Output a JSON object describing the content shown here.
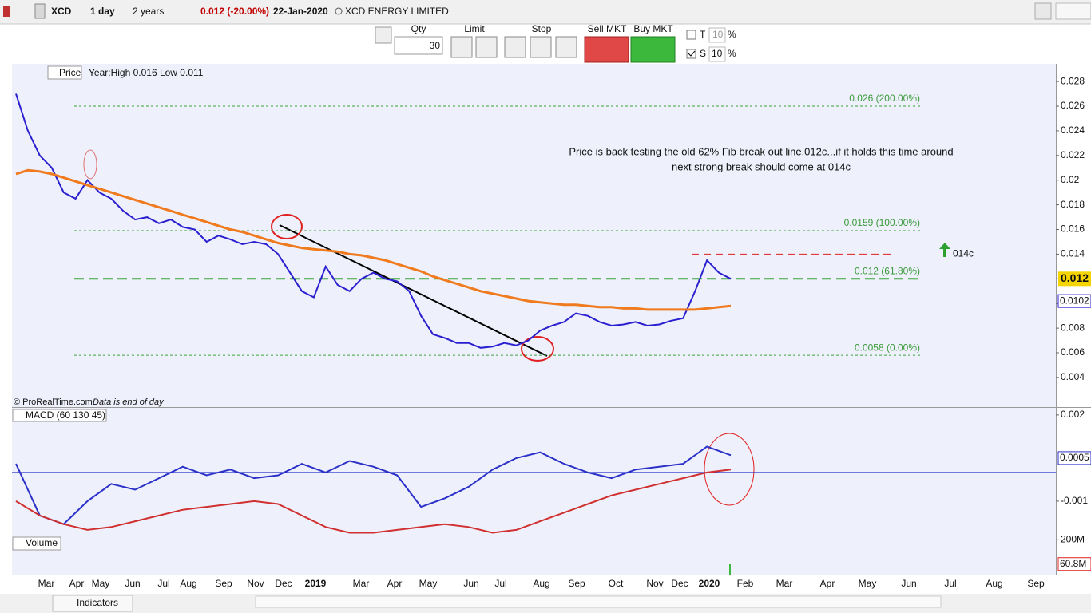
{
  "toolbar": {
    "symbol": "XCD",
    "interval": "1 day",
    "period": "2 years",
    "last_change": "0.012 (-20.00%)",
    "date": "22-Jan-2020",
    "name": "XCD ENERGY LIMITED"
  },
  "order_bar": {
    "qty_label": "Qty",
    "qty": "30",
    "limit": "Limit",
    "stop": "Stop",
    "sell": "Sell MKT",
    "buy": "Buy MKT",
    "t_label": "T",
    "t_value": "10",
    "t_unit": "%",
    "s_label": "S",
    "s_value": "10",
    "s_unit": "%"
  },
  "price_panel": {
    "type": "line",
    "title": "Price",
    "header_info": "Year:High 0.016 Low 0.011",
    "credit": "© ProRealTime.com",
    "credit_note": "Data is end of day",
    "ylim": [
      0.0016,
      0.0293
    ],
    "yticks": [
      0.028,
      0.026,
      0.024,
      0.022,
      0.02,
      0.018,
      0.016,
      0.014,
      0.012,
      0.01,
      0.008,
      0.006,
      0.004
    ],
    "series": [
      {
        "name": "Price",
        "color": "#2a1fd0",
        "values": [
          0.027,
          0.024,
          0.022,
          0.021,
          0.019,
          0.0185,
          0.02,
          0.019,
          0.0185,
          0.0175,
          0.0168,
          0.017,
          0.0165,
          0.0168,
          0.0162,
          0.016,
          0.015,
          0.0155,
          0.0152,
          0.0148,
          0.015,
          0.0148,
          0.014,
          0.0125,
          0.011,
          0.0105,
          0.013,
          0.0115,
          0.011,
          0.012,
          0.0125,
          0.012,
          0.0118,
          0.011,
          0.009,
          0.0075,
          0.0072,
          0.0068,
          0.0068,
          0.0064,
          0.0065,
          0.0068,
          0.0066,
          0.007,
          0.0078,
          0.0082,
          0.0085,
          0.0092,
          0.009,
          0.0085,
          0.0082,
          0.0083,
          0.0085,
          0.0082,
          0.0083,
          0.0086,
          0.0088,
          0.011,
          0.0135,
          0.0125,
          0.012
        ]
      },
      {
        "color": "#f07a1e",
        "values": [
          0.0205,
          0.0208,
          0.0207,
          0.0205,
          0.0202,
          0.0199,
          0.0196,
          0.0193,
          0.019,
          0.0187,
          0.0184,
          0.0181,
          0.0178,
          0.0175,
          0.0172,
          0.0169,
          0.0166,
          0.0163,
          0.016,
          0.0158,
          0.0155,
          0.0152,
          0.0149,
          0.0147,
          0.0145,
          0.0144,
          0.0143,
          0.0142,
          0.014,
          0.0139,
          0.0137,
          0.0135,
          0.0132,
          0.0129,
          0.0126,
          0.0122,
          0.0119,
          0.0116,
          0.0113,
          0.011,
          0.0108,
          0.0106,
          0.0104,
          0.0102,
          0.0101,
          0.01,
          0.0099,
          0.0099,
          0.0098,
          0.0097,
          0.0097,
          0.0096,
          0.0096,
          0.0095,
          0.0095,
          0.0095,
          0.0095,
          0.0095,
          0.0096,
          0.0097,
          0.0098
        ]
      }
    ],
    "fib_levels": [
      {
        "value": 0.026,
        "label": "0.026 (200.00%)"
      },
      {
        "value": 0.0159,
        "label": "0.0159 (100.00%)"
      },
      {
        "value": 0.012,
        "label": "0.012 (61.80%)"
      },
      {
        "value": 0.0058,
        "label": "0.0058 (0.00%)"
      }
    ],
    "target_line": {
      "value": 0.014,
      "label": "014c"
    },
    "annotation": [
      "Price is back testing the old 62% Fib break out line.012c...if it holds this time around",
      "next strong break should come at 014c"
    ],
    "last_price": 0.012,
    "ma_price": 0.0102,
    "x_labels": [
      "Mar",
      "Apr",
      "May",
      "Jun",
      "Jul",
      "Aug",
      "Sep",
      "Nov",
      "Dec",
      "2019",
      "Mar",
      "Apr",
      "May",
      "Jun",
      "Jul",
      "Aug",
      "Sep",
      "Oct",
      "Nov",
      "Dec",
      "2020",
      "Feb",
      "Mar",
      "Apr",
      "May",
      "Jun",
      "Jul",
      "Aug",
      "Sep"
    ]
  },
  "macd_panel": {
    "type": "line",
    "title": "MACD (60 130 45)",
    "ylim": [
      -0.00217,
      0.00222
    ],
    "yticks": [
      0.002,
      -0.001
    ],
    "series": [
      {
        "color": "#2a30c8",
        "values": [
          0.0003,
          -0.0015,
          -0.0018,
          -0.001,
          -0.0004,
          -0.0006,
          -0.0002,
          0.0002,
          -0.0001,
          0.0001,
          -0.0002,
          -0.0001,
          0.0003,
          0.0,
          0.0004,
          0.0002,
          -0.0001,
          -0.0012,
          -0.0009,
          -0.0005,
          0.0001,
          0.0005,
          0.0007,
          0.0003,
          0.0,
          -0.0002,
          0.0001,
          0.0002,
          0.0003,
          0.0009,
          0.0006
        ]
      },
      {
        "color": "#d03030",
        "values": [
          -0.001,
          -0.0015,
          -0.0018,
          -0.002,
          -0.0019,
          -0.0017,
          -0.0015,
          -0.0013,
          -0.0012,
          -0.0011,
          -0.001,
          -0.0011,
          -0.0015,
          -0.0019,
          -0.0021,
          -0.0021,
          -0.002,
          -0.0019,
          -0.0018,
          -0.0019,
          -0.0021,
          -0.002,
          -0.0017,
          -0.0014,
          -0.0011,
          -0.0008,
          -0.0006,
          -0.0004,
          -0.0002,
          0.0,
          0.0001
        ]
      }
    ],
    "last_value": 0.0005
  },
  "volume_panel": {
    "title": "Volume",
    "ylim": [
      0,
      220000000
    ],
    "yticks": [
      {
        "value": 200000000,
        "label": "200M"
      }
    ],
    "last_value": {
      "value": 60800000,
      "label": "60.8M"
    }
  },
  "bottom_bar": {
    "indicators": "Indicators"
  }
}
